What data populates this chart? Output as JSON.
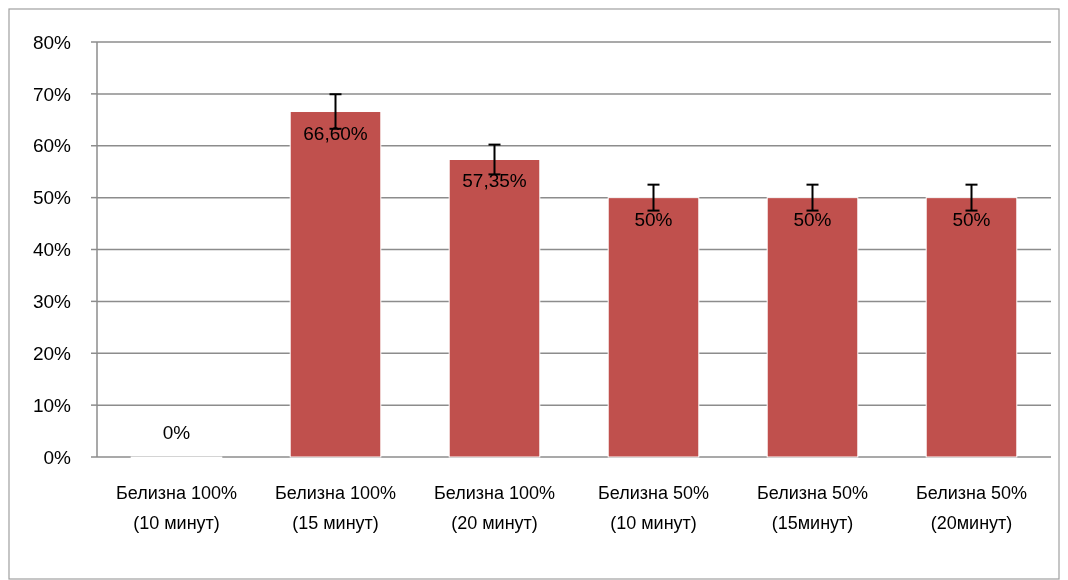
{
  "chart_data": {
    "type": "bar",
    "categories": [
      "Белизна 100% (10 минут)",
      "Белизна 100% (15 минут)",
      "Белизна 100% (20 минут)",
      "Белизна 50% (10 минут)",
      "Белизна 50% (15минут)",
      "Белизна 50% (20минут)"
    ],
    "values": [
      0,
      66.6,
      57.35,
      50,
      50,
      50
    ],
    "errors": [
      0,
      3.33,
      2.87,
      2.5,
      2.5,
      2.5
    ],
    "value_labels": [
      "0%",
      "66,60%",
      "57,35%",
      "50%",
      "50%",
      "50%"
    ],
    "color": "#c0504d",
    "ylim": [
      0,
      80
    ],
    "yticks": [
      {
        "value": 0,
        "label": "0%"
      },
      {
        "value": 10,
        "label": "10%"
      },
      {
        "value": 20,
        "label": "20%"
      },
      {
        "value": 30,
        "label": "30%"
      },
      {
        "value": 40,
        "label": "40%"
      },
      {
        "value": 50,
        "label": "50%"
      },
      {
        "value": 60,
        "label": "60%"
      },
      {
        "value": 70,
        "label": "70%"
      },
      {
        "value": 80,
        "label": "80%"
      }
    ],
    "grid": "y"
  }
}
